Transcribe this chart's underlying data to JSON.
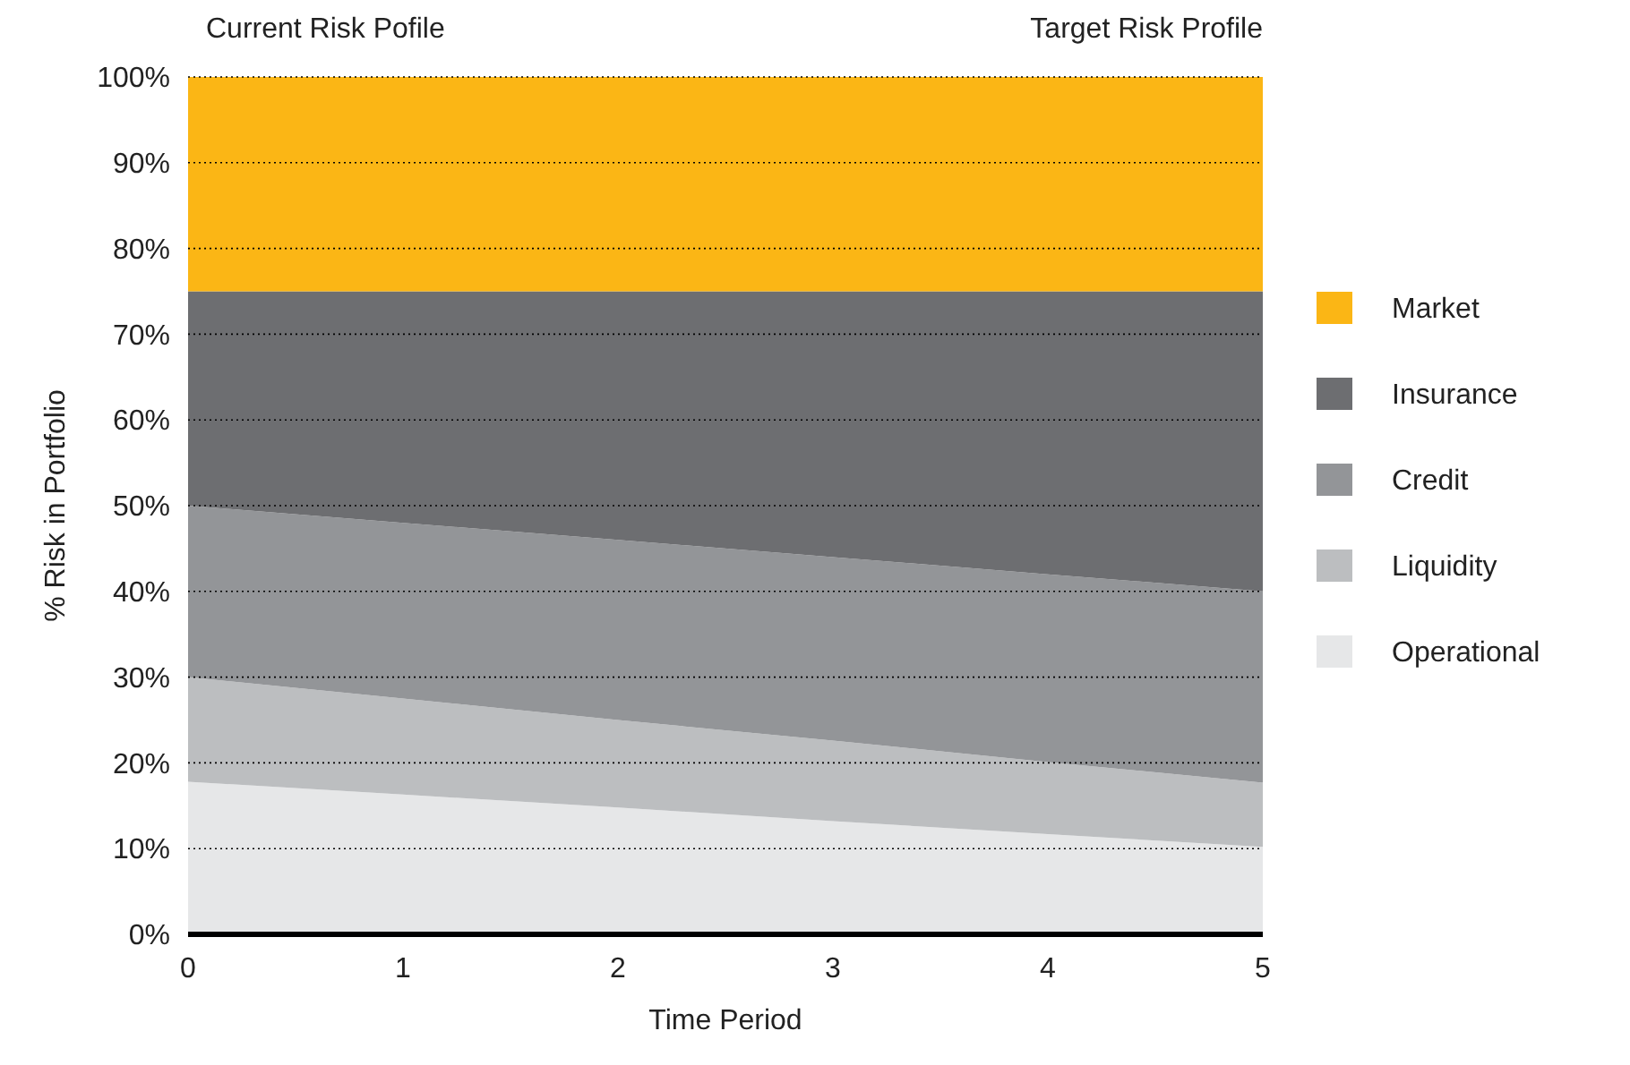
{
  "chart_data": {
    "type": "area",
    "stacked": true,
    "xlabel": "Time Period",
    "ylabel": "% Risk in Portfolio",
    "annotations": [
      "Current Risk Pofile",
      "Target Risk Profile"
    ],
    "x": [
      0,
      1,
      2,
      3,
      4,
      5
    ],
    "xlim": [
      0,
      5
    ],
    "xticks": [
      0,
      1,
      2,
      3,
      4,
      5
    ],
    "ylim": [
      0,
      100
    ],
    "yticks": [
      {
        "value": 0,
        "label": "0%"
      },
      {
        "value": 10,
        "label": "10%"
      },
      {
        "value": 20,
        "label": "20%"
      },
      {
        "value": 30,
        "label": "30%"
      },
      {
        "value": 40,
        "label": "40%"
      },
      {
        "value": 50,
        "label": "50%"
      },
      {
        "value": 60,
        "label": "60%"
      },
      {
        "value": 70,
        "label": "70%"
      },
      {
        "value": 80,
        "label": "80%"
      },
      {
        "value": 90,
        "label": "90%"
      },
      {
        "value": 100,
        "label": "100%"
      }
    ],
    "grid": "y",
    "legend": "right",
    "series": [
      {
        "name": "Operational",
        "color": "#e6e7e8",
        "values": [
          17.8,
          16.3,
          14.8,
          13.2,
          11.7,
          10.2
        ]
      },
      {
        "name": "Liquidity",
        "color": "#bcbec0",
        "values": [
          12.2,
          11.2,
          10.2,
          9.4,
          8.4,
          7.5
        ]
      },
      {
        "name": "Credit",
        "color": "#939598",
        "values": [
          20,
          20.5,
          21,
          21.4,
          21.9,
          22.3
        ]
      },
      {
        "name": "Insurance",
        "color": "#6d6e71",
        "values": [
          25,
          27,
          29,
          31,
          33,
          35
        ]
      },
      {
        "name": "Market",
        "color": "#fbb615",
        "values": [
          25,
          25,
          25,
          25,
          25,
          25
        ]
      }
    ]
  }
}
